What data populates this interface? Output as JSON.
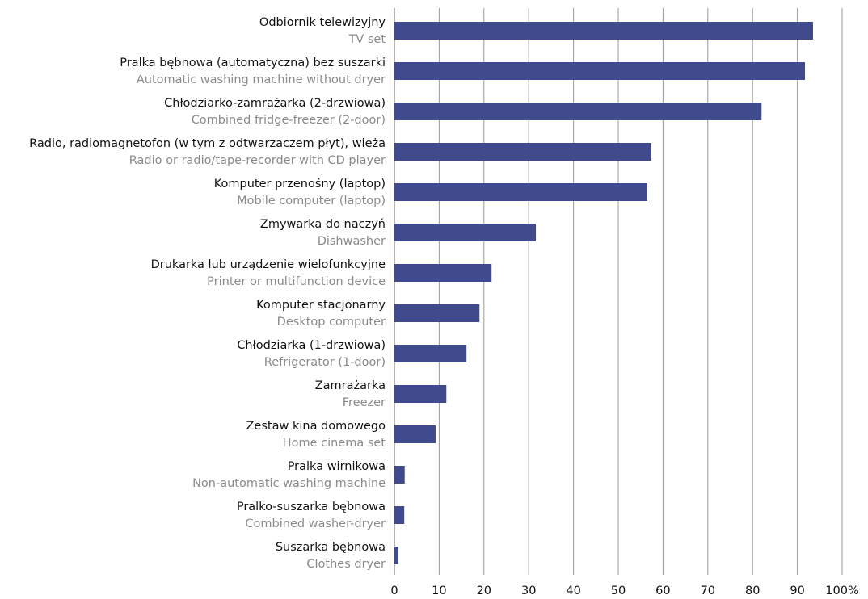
{
  "chart_data": {
    "type": "barh",
    "categories": [
      "Odbiornik telewizyjny",
      "Pralka bębnowa (automatyczna) bez suszarki",
      "Chłodziarko-zamrażarka (2-drzwiowa)",
      "Radio, radiomagnetofon (w tym z odtwarzaczem płyt), wieża",
      "Komputer przenośny (laptop)",
      "Zmywarka do naczyń",
      "Drukarka lub urządzenie wielofunkcyjne",
      "Komputer stacjonarny",
      "Chłodziarka (1-drzwiowa)",
      "Zamrażarka",
      "Zestaw kina domowego",
      "Pralka wirnikowa",
      "Pralko-suszarka bębnowa",
      "Suszarka bębnowa"
    ],
    "categories_en": [
      "TV set",
      "Automatic washing machine without dryer",
      "Combined fridge-freezer (2-door)",
      "Radio or radio/tape-recorder with CD player",
      "Mobile computer (laptop)",
      "Dishwasher",
      "Printer or multifunction device",
      "Desktop computer",
      "Refrigerator (1-door)",
      "Freezer",
      "Home cinema set",
      "Non-automatic washing machine",
      "Combined washer-dryer",
      "Clothes dryer"
    ],
    "values": [
      93.5,
      91.7,
      82.0,
      57.4,
      56.5,
      31.6,
      21.7,
      19.0,
      16.1,
      11.6,
      9.2,
      2.3,
      2.2,
      0.9
    ],
    "color": "#3f4b8c",
    "xlim": [
      0,
      100
    ],
    "xticks": [
      0,
      10,
      20,
      30,
      40,
      50,
      60,
      70,
      80,
      90,
      {
        "value": 100,
        "label": "100%"
      }
    ],
    "grid": true
  }
}
